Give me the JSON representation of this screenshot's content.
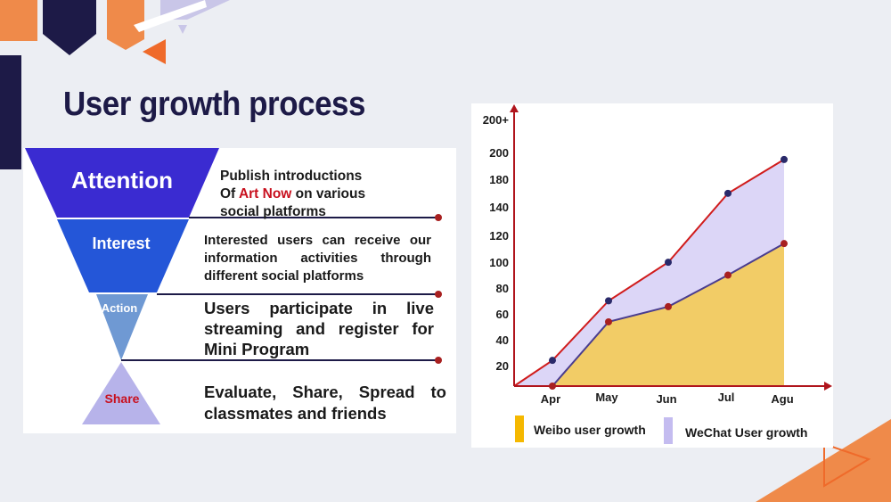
{
  "slide": {
    "title": "User growth process"
  },
  "funnel": {
    "stages": [
      {
        "label": "Attention",
        "color": "#3a2bd1"
      },
      {
        "label": "Interest",
        "color": "#2456d8"
      },
      {
        "label": "Action",
        "color": "#6f99d3"
      },
      {
        "label": "Share",
        "color": "#b7b3ea"
      }
    ],
    "descriptions": {
      "attention_line1": "Publish introductions",
      "attention_line2_pre": "Of ",
      "attention_highlight": "Art Now",
      "attention_line2_post": " on various",
      "attention_line3": "social platforms",
      "interest": "Interested users can receive our information activities through different social platforms",
      "action": "Users participate in live streaming and register for Mini Program",
      "share": "Evaluate, Share, Spread to classmates and friends"
    }
  },
  "chart_data": {
    "type": "area",
    "categories": [
      "Apr",
      "May",
      "Jun",
      "Jul",
      "Agu"
    ],
    "y_ticks": [
      "20",
      "40",
      "60",
      "80",
      "100",
      "120",
      "140",
      "180",
      "200",
      "200+"
    ],
    "series": [
      {
        "name": "Weibo user growth",
        "values": [
          0,
          55,
          68,
          95,
          122
        ],
        "color": "#f2cc66",
        "line_color": "#4a3d8f",
        "point_color": "#a82020"
      },
      {
        "name": "WeChat User growth",
        "values": [
          22,
          73,
          106,
          165,
          194
        ],
        "color": "#dcd6f7",
        "line_color": "#d01c1c",
        "point_color": "#2a2a6a"
      }
    ],
    "legend_placement": "bottom",
    "axis_color": "#b0141c"
  }
}
